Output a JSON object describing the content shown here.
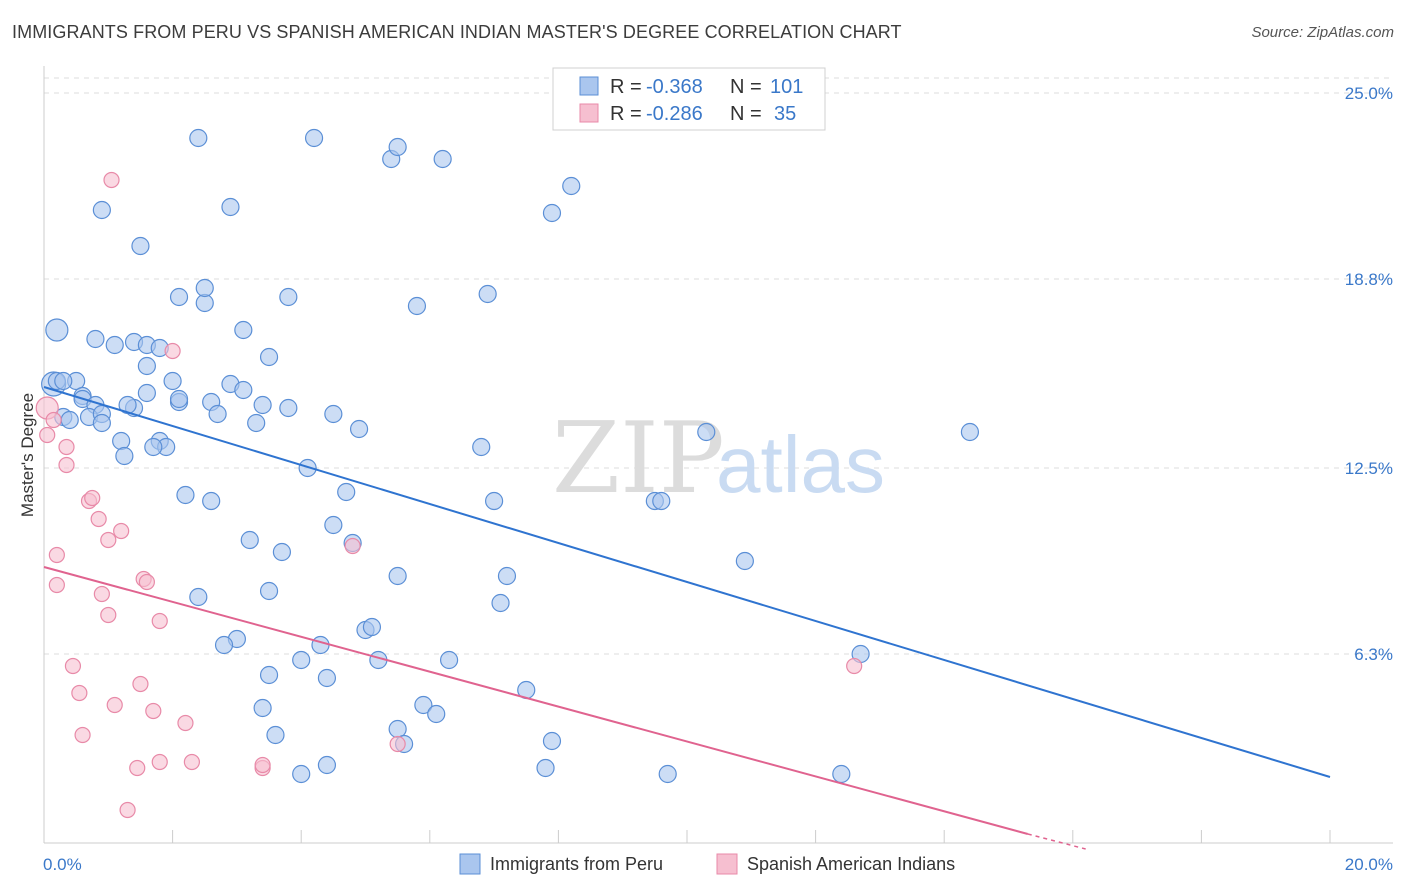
{
  "title": "IMMIGRANTS FROM PERU VS SPANISH AMERICAN INDIAN MASTER'S DEGREE CORRELATION CHART",
  "source": "Source: ZipAtlas.com",
  "watermark": {
    "zip": "ZIP",
    "atlas": "atlas"
  },
  "colors": {
    "blue": "#5b8fd6",
    "blue_fill": "#aac6ee",
    "blue_line": "#2f74d0",
    "pink": "#e88aa8",
    "pink_fill": "#f6bfd0",
    "pink_line": "#e0638f",
    "accent": "#3a78c9"
  },
  "legend": {
    "series1": {
      "r_label": "R =",
      "r_value": "-0.368",
      "n_label": "N =",
      "n_value": "101"
    },
    "series2": {
      "r_label": "R =",
      "r_value": "-0.286",
      "n_label": "N =",
      "n_value": "35"
    }
  },
  "chart_data": {
    "type": "scatter",
    "title": "IMMIGRANTS FROM PERU VS SPANISH AMERICAN INDIAN MASTER'S DEGREE CORRELATION CHART",
    "xlabel": "",
    "ylabel": "Master's Degree",
    "xlim": [
      0,
      20
    ],
    "ylim": [
      0,
      25.5
    ],
    "x_tick_labels": [
      "0.0%",
      "20.0%"
    ],
    "y_ticks": [
      6.3,
      12.5,
      18.8,
      25.0
    ],
    "y_tick_labels": [
      "6.3%",
      "12.5%",
      "18.8%",
      "25.0%"
    ],
    "series": [
      {
        "name": "Immigrants from Peru",
        "trend": {
          "x": [
            0,
            20
          ],
          "y": [
            15.2,
            2.2
          ]
        },
        "points": [
          [
            0.2,
            17.1
          ],
          [
            0.15,
            15.3
          ],
          [
            0.2,
            15.4
          ],
          [
            0.5,
            15.4
          ],
          [
            0.3,
            15.4
          ],
          [
            0.6,
            14.9
          ],
          [
            0.6,
            14.8
          ],
          [
            0.8,
            14.6
          ],
          [
            0.3,
            14.2
          ],
          [
            0.7,
            14.2
          ],
          [
            0.9,
            14.3
          ],
          [
            0.9,
            14.0
          ],
          [
            0.8,
            16.8
          ],
          [
            1.1,
            16.6
          ],
          [
            1.4,
            16.7
          ],
          [
            1.6,
            16.6
          ],
          [
            1.8,
            16.5
          ],
          [
            1.6,
            15.9
          ],
          [
            2.0,
            15.4
          ],
          [
            1.6,
            15.0
          ],
          [
            2.1,
            14.7
          ],
          [
            1.4,
            14.5
          ],
          [
            2.6,
            14.7
          ],
          [
            2.9,
            15.3
          ],
          [
            3.1,
            15.1
          ],
          [
            3.4,
            14.6
          ],
          [
            2.7,
            14.3
          ],
          [
            3.3,
            14.0
          ],
          [
            3.8,
            14.5
          ],
          [
            4.5,
            14.3
          ],
          [
            4.9,
            13.8
          ],
          [
            1.2,
            13.4
          ],
          [
            1.8,
            13.4
          ],
          [
            1.9,
            13.2
          ],
          [
            1.25,
            12.9
          ],
          [
            4.1,
            12.5
          ],
          [
            2.2,
            11.6
          ],
          [
            2.6,
            11.4
          ],
          [
            4.7,
            11.7
          ],
          [
            4.5,
            10.6
          ],
          [
            4.8,
            10.0
          ],
          [
            3.2,
            10.1
          ],
          [
            3.7,
            9.7
          ],
          [
            5.5,
            8.9
          ],
          [
            3.5,
            8.4
          ],
          [
            2.4,
            8.2
          ],
          [
            7.0,
            11.4
          ],
          [
            6.8,
            13.2
          ],
          [
            3.0,
            6.8
          ],
          [
            2.8,
            6.6
          ],
          [
            4.3,
            6.6
          ],
          [
            4.0,
            6.1
          ],
          [
            5.0,
            7.1
          ],
          [
            5.1,
            7.2
          ],
          [
            5.2,
            6.1
          ],
          [
            6.3,
            6.1
          ],
          [
            3.5,
            5.6
          ],
          [
            4.4,
            5.5
          ],
          [
            3.4,
            4.5
          ],
          [
            3.6,
            3.6
          ],
          [
            5.5,
            3.8
          ],
          [
            5.6,
            3.3
          ],
          [
            5.9,
            4.6
          ],
          [
            6.1,
            4.3
          ],
          [
            4.0,
            2.3
          ],
          [
            4.4,
            2.6
          ],
          [
            7.5,
            5.1
          ],
          [
            7.9,
            3.4
          ],
          [
            7.8,
            2.5
          ],
          [
            9.5,
            11.4
          ],
          [
            9.6,
            11.4
          ],
          [
            10.3,
            13.7
          ],
          [
            7.1,
            8.0
          ],
          [
            7.2,
            8.9
          ],
          [
            10.9,
            9.4
          ],
          [
            12.7,
            6.3
          ],
          [
            9.7,
            2.3
          ],
          [
            12.4,
            2.3
          ],
          [
            14.4,
            13.7
          ],
          [
            0.9,
            21.1
          ],
          [
            1.5,
            19.9
          ],
          [
            2.4,
            23.5
          ],
          [
            2.9,
            21.2
          ],
          [
            4.2,
            23.5
          ],
          [
            5.4,
            22.8
          ],
          [
            5.5,
            23.2
          ],
          [
            6.2,
            22.8
          ],
          [
            7.9,
            21.0
          ],
          [
            8.2,
            21.9
          ],
          [
            2.1,
            18.2
          ],
          [
            2.5,
            18.0
          ],
          [
            2.5,
            18.5
          ],
          [
            3.1,
            17.1
          ],
          [
            3.8,
            18.2
          ],
          [
            5.8,
            17.9
          ],
          [
            6.9,
            18.3
          ],
          [
            3.5,
            16.2
          ],
          [
            1.7,
            13.2
          ],
          [
            1.3,
            14.6
          ],
          [
            0.4,
            14.1
          ],
          [
            2.1,
            14.8
          ]
        ]
      },
      {
        "name": "Spanish American Indians",
        "trend": {
          "x": [
            0,
            15.3
          ],
          "y": [
            9.2,
            0.3
          ]
        },
        "points": [
          [
            0.05,
            14.5
          ],
          [
            0.15,
            14.1
          ],
          [
            0.05,
            13.6
          ],
          [
            0.35,
            13.2
          ],
          [
            0.35,
            12.6
          ],
          [
            0.7,
            11.4
          ],
          [
            0.75,
            11.5
          ],
          [
            0.85,
            10.8
          ],
          [
            1.2,
            10.4
          ],
          [
            1.0,
            10.1
          ],
          [
            0.2,
            9.6
          ],
          [
            0.2,
            8.6
          ],
          [
            1.55,
            8.8
          ],
          [
            1.6,
            8.7
          ],
          [
            0.9,
            8.3
          ],
          [
            1.0,
            7.6
          ],
          [
            1.8,
            7.4
          ],
          [
            2.0,
            16.4
          ],
          [
            1.05,
            22.1
          ],
          [
            4.8,
            9.9
          ],
          [
            12.6,
            5.9
          ],
          [
            0.45,
            5.9
          ],
          [
            0.55,
            5.0
          ],
          [
            1.5,
            5.3
          ],
          [
            1.1,
            4.6
          ],
          [
            1.7,
            4.4
          ],
          [
            2.2,
            4.0
          ],
          [
            0.6,
            3.6
          ],
          [
            1.45,
            2.5
          ],
          [
            1.8,
            2.7
          ],
          [
            2.3,
            2.7
          ],
          [
            3.4,
            2.5
          ],
          [
            3.4,
            2.6
          ],
          [
            5.5,
            3.3
          ],
          [
            1.3,
            1.1
          ]
        ]
      }
    ]
  },
  "bottom_legend": {
    "series1": "Immigrants from Peru",
    "series2": "Spanish American Indians"
  }
}
